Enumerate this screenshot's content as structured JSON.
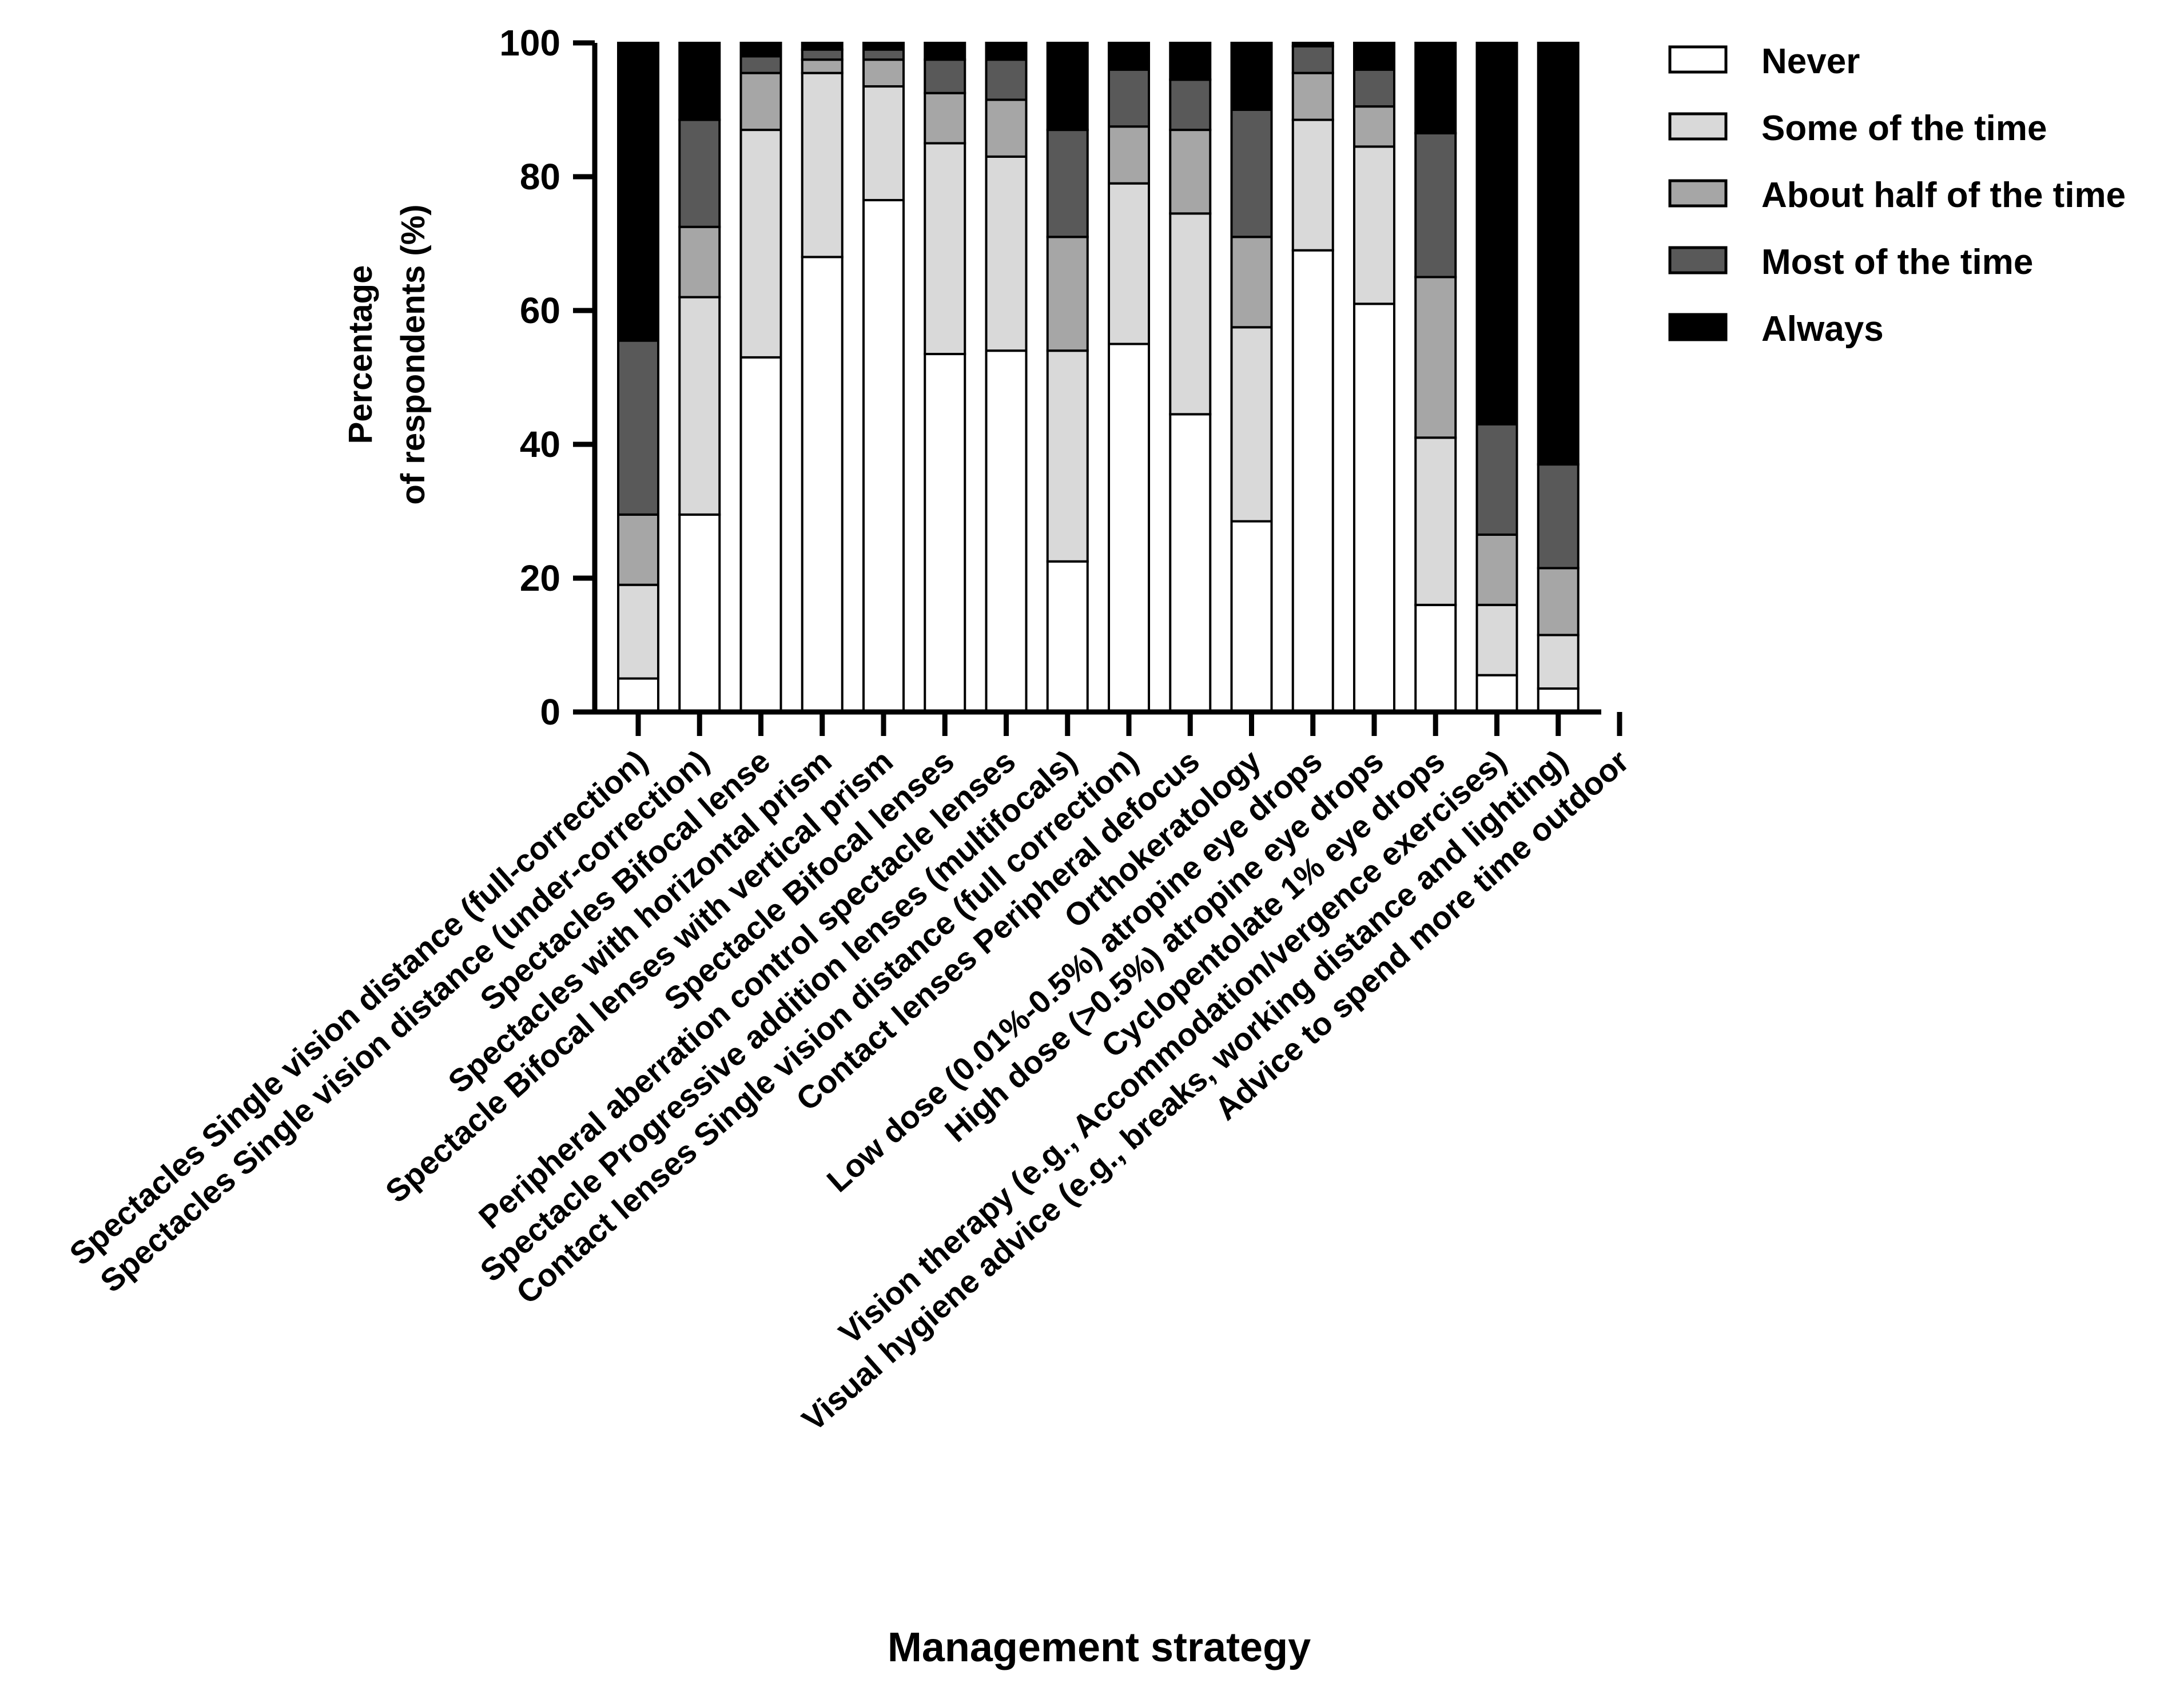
{
  "chart_data": {
    "type": "bar",
    "stacked": true,
    "title": "",
    "ylabel_lines": [
      "Percentage",
      "of respondents (%)"
    ],
    "xlabel": "Management strategy",
    "ylim": [
      0,
      100
    ],
    "yticks": [
      0,
      20,
      40,
      60,
      80,
      100
    ],
    "ytick_labels": [
      "0",
      "20",
      "40",
      "60",
      "80",
      "100"
    ],
    "categories": [
      "Spectacles Single vision distance (full-correction)",
      "Spectacles Single vision distance (under-correction)",
      "Spectacles Bifocal lense",
      "Spectacles with horizontal prism",
      "Spectacle Bifocal lenses with vertical prism",
      "Spectacle Bifocal lenses",
      "Peripheral aberration control spectacle lenses",
      "Spectacle Progressive addition lenses (multifocals)",
      "Contact lenses Single vision distance (full correction)",
      "Contact lenses Peripheral defocus",
      "Orthokeratology",
      "Low dose (0.01%-0.5%) atropine eye drops",
      "High dose (>0.5%) atropine eye drops",
      "Cyclopentolate 1% eye drops",
      "Vision therapy (e.g., Accommodation/vergence exercises)",
      "Visual hygiene advice (e.g., breaks, working distance and lighting)",
      "Advice to spend more time outdoor"
    ],
    "tick_labels": [
      "Spectacles Single vision distance (full-correction)",
      "Spectacles Single vision distance (under-correction)",
      "Spectacles Bifocal lense",
      "Spectacles with horizontal prism",
      "Spectacle Bifocal lenses with vertical prism",
      "Spectacle Bifocal lenses",
      "Peripheral aberration control spectacle lenses",
      "Spectacle Progressive addition lenses (multifocals)",
      "Contact lenses Single vision distance (full correction)",
      "Contact lenses Peripheral defocus",
      "Orthokeratology",
      "Low dose (0.01%-0.5%) atropine eye drops",
      "High dose (>0.5%) atropine eye drops",
      "Cyclopentolate 1% eye drops",
      "Vision therapy (e.g., Accommodation/vergence exercises)",
      "Visual hygiene advice (e.g., breaks, working distance and lighting)",
      "Advice to spend more time outdoor"
    ],
    "series": [
      {
        "name": "Never",
        "color": "#ffffff",
        "values": [
          5,
          29.5,
          53,
          68,
          76.5,
          53.5,
          54,
          22.5,
          55,
          44.5,
          28.5,
          69,
          61,
          16,
          5.5,
          3.5,
          0
        ]
      },
      {
        "name": "Some of the time",
        "color": "#d9d9d9",
        "values": [
          14,
          32.5,
          34,
          27.5,
          17,
          31.5,
          29,
          31.5,
          24,
          30,
          29,
          19.5,
          23.5,
          25,
          10.5,
          8,
          0
        ]
      },
      {
        "name": "About half of the time",
        "color": "#a6a6a6",
        "values": [
          10.5,
          10.5,
          8.5,
          2,
          4,
          7.5,
          8.5,
          17,
          8.5,
          12.5,
          13.5,
          7,
          6,
          24,
          10.5,
          10,
          0
        ]
      },
      {
        "name": "Most of the time",
        "color": "#595959",
        "values": [
          26,
          16,
          2.5,
          1.5,
          1.5,
          5,
          6,
          16,
          8.5,
          7.5,
          19,
          4,
          5.5,
          21.5,
          16.5,
          15.5,
          0
        ]
      },
      {
        "name": "Always",
        "color": "#000000",
        "values": [
          44.5,
          11.5,
          2,
          1,
          1,
          2.5,
          2.5,
          13,
          4,
          5.5,
          10,
          0.5,
          4,
          13.5,
          57,
          63,
          0
        ]
      }
    ],
    "legend": {
      "position": "top-right",
      "entries": [
        "Never",
        "Some of the time",
        "About half of the time",
        "Most of the time",
        "Always"
      ]
    }
  }
}
